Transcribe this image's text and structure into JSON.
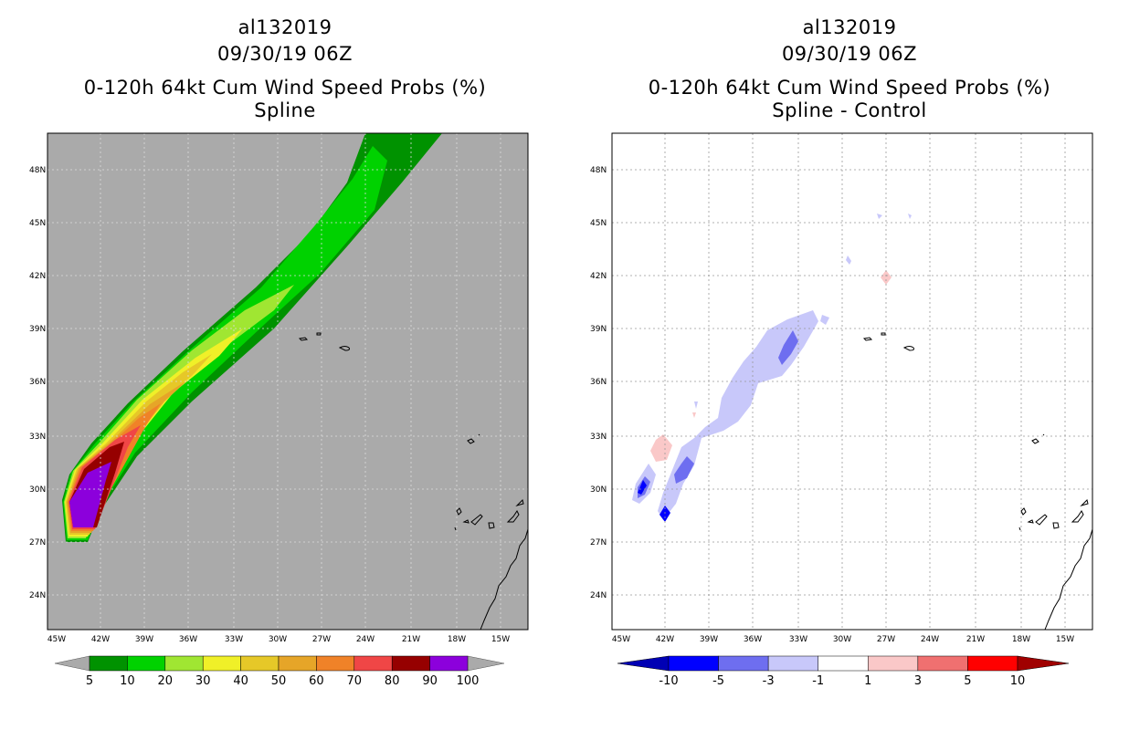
{
  "left_panel": {
    "storm_id": "al132019",
    "datetime": "09/30/19 06Z",
    "product": "0-120h 64kt Cum Wind Speed Probs (%)",
    "method": "Spline",
    "colorbar": {
      "labels": [
        "5",
        "10",
        "20",
        "30",
        "40",
        "50",
        "60",
        "70",
        "80",
        "90",
        "100"
      ],
      "colors": [
        "#009200",
        "#00d200",
        "#a0e632",
        "#f0f028",
        "#e6c828",
        "#e6a528",
        "#f08228",
        "#f04646",
        "#960000",
        "#8c00dc"
      ]
    }
  },
  "right_panel": {
    "storm_id": "al132019",
    "datetime": "09/30/19 06Z",
    "product": "0-120h 64kt Cum Wind Speed Probs (%)",
    "method": "Spline - Control",
    "colorbar": {
      "labels": [
        "-10",
        "-5",
        "-3",
        "-1",
        "1",
        "3",
        "5",
        "10"
      ],
      "colors": [
        "#0000b4",
        "#0000ff",
        "#6e6ef0",
        "#c8c8fa",
        "#ffffff",
        "#fac8c8",
        "#f07070",
        "#ff0000",
        "#a00000"
      ]
    }
  },
  "axes": {
    "lat_labels": [
      "48N",
      "45N",
      "42N",
      "39N",
      "36N",
      "33N",
      "30N",
      "27N",
      "24N"
    ],
    "lon_labels": [
      "45W",
      "42W",
      "39W",
      "36W",
      "33W",
      "30W",
      "27W",
      "24W",
      "21W",
      "18W",
      "15W"
    ]
  },
  "colors": {
    "map_background_left": "#aaaaaa",
    "map_background_right": "#ffffff"
  }
}
